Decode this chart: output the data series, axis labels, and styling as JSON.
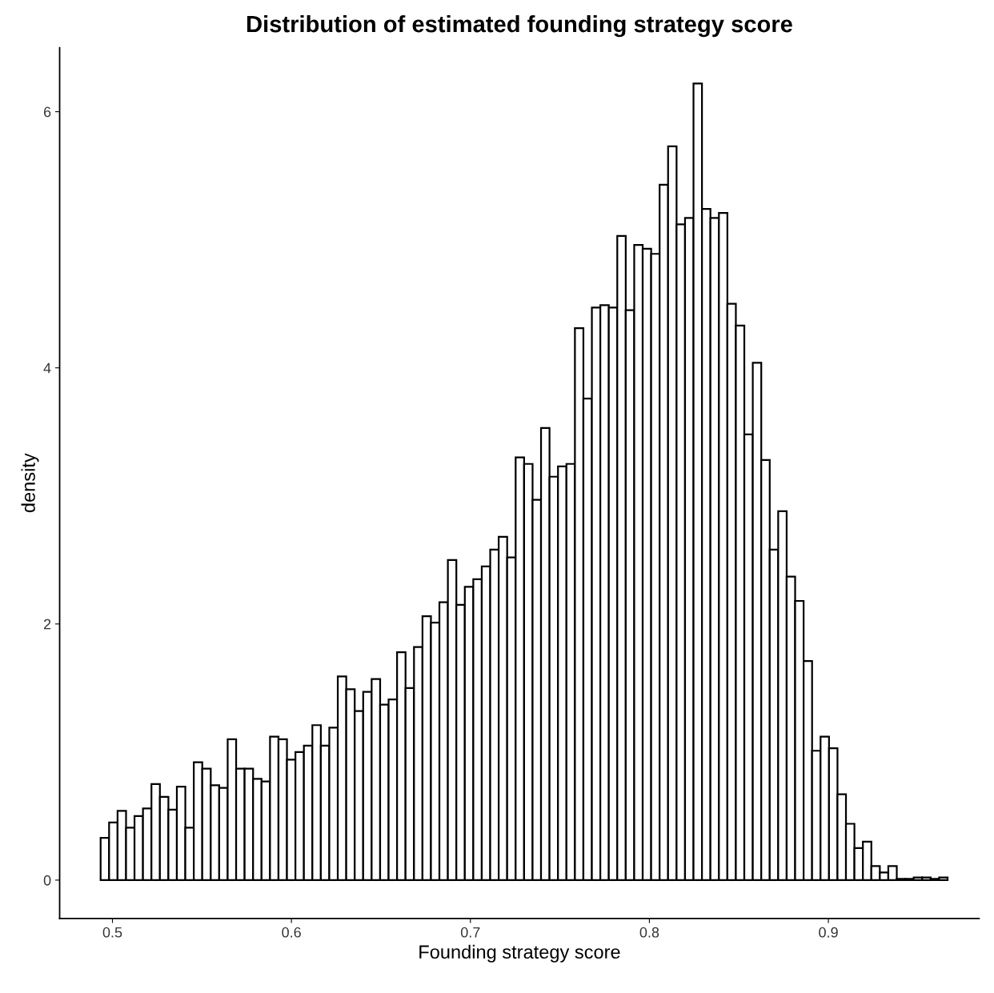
{
  "chart_data": {
    "type": "histogram",
    "title": "Distribution of estimated founding strategy score",
    "xlabel": "Founding strategy score",
    "ylabel": "density",
    "bins": [
      0.4934,
      0.49813,
      0.50286,
      0.5076,
      0.51233,
      0.51706,
      0.52179,
      0.52652,
      0.53126,
      0.53599,
      0.54072,
      0.54545,
      0.55018,
      0.55492,
      0.55965,
      0.56438,
      0.56911,
      0.57384,
      0.57858,
      0.58331,
      0.58804,
      0.59277,
      0.5975,
      0.60224,
      0.60697,
      0.6117,
      0.61643,
      0.62116,
      0.6259,
      0.63063,
      0.63536,
      0.64009,
      0.64482,
      0.64956,
      0.65429,
      0.65902,
      0.66375,
      0.66848,
      0.67322,
      0.67795,
      0.68268,
      0.68741,
      0.69214,
      0.69688,
      0.70161,
      0.70634,
      0.71107,
      0.7158,
      0.72054,
      0.72527,
      0.73,
      0.73473,
      0.73946,
      0.7442,
      0.74893,
      0.75366,
      0.75839,
      0.76312,
      0.76786,
      0.77259,
      0.77732,
      0.78205,
      0.78678,
      0.79152,
      0.79625,
      0.80098,
      0.80571,
      0.81044,
      0.81518,
      0.81991,
      0.82464,
      0.82937,
      0.8341,
      0.83884,
      0.84357,
      0.8483,
      0.85303,
      0.85776,
      0.8625,
      0.86723,
      0.87196,
      0.87669,
      0.88142,
      0.88616,
      0.89089,
      0.89562,
      0.90035,
      0.90508,
      0.90982,
      0.91455,
      0.91928,
      0.92401,
      0.92874,
      0.93348,
      0.93821,
      0.94294,
      0.94767,
      0.9524,
      0.95714,
      0.96187,
      0.9666
    ],
    "values": [
      0.33,
      0.45,
      0.54,
      0.41,
      0.5,
      0.56,
      0.75,
      0.65,
      0.55,
      0.73,
      0.41,
      0.92,
      0.87,
      0.74,
      0.72,
      1.1,
      0.87,
      0.87,
      0.79,
      0.77,
      1.12,
      1.1,
      0.94,
      1.0,
      1.05,
      1.21,
      1.05,
      1.19,
      1.59,
      1.49,
      1.32,
      1.47,
      1.57,
      1.37,
      1.41,
      1.78,
      1.5,
      1.82,
      2.06,
      2.01,
      2.17,
      2.5,
      2.15,
      2.29,
      2.35,
      2.45,
      2.58,
      2.68,
      2.52,
      3.3,
      3.25,
      2.97,
      3.53,
      3.15,
      3.23,
      3.25,
      4.31,
      3.76,
      4.47,
      4.49,
      4.47,
      5.03,
      4.45,
      4.96,
      4.93,
      4.89,
      5.43,
      5.73,
      5.12,
      5.17,
      6.22,
      5.24,
      5.17,
      5.21,
      4.5,
      4.33,
      3.48,
      4.04,
      3.28,
      2.58,
      2.88,
      2.37,
      2.18,
      1.71,
      1.01,
      1.12,
      1.03,
      0.67,
      0.44,
      0.25,
      0.3,
      0.11,
      0.06,
      0.11,
      0.01,
      0.01,
      0.02,
      0.02,
      0.01,
      0.02
    ],
    "color": "#ffffff",
    "xlim": [
      0.4705,
      0.9842
    ],
    "ylim": [
      -0.3,
      6.5
    ],
    "xticks": [
      0.5,
      0.6,
      0.7,
      0.8,
      0.9
    ],
    "yticks": [
      0,
      2,
      4,
      6
    ],
    "grid": false
  }
}
